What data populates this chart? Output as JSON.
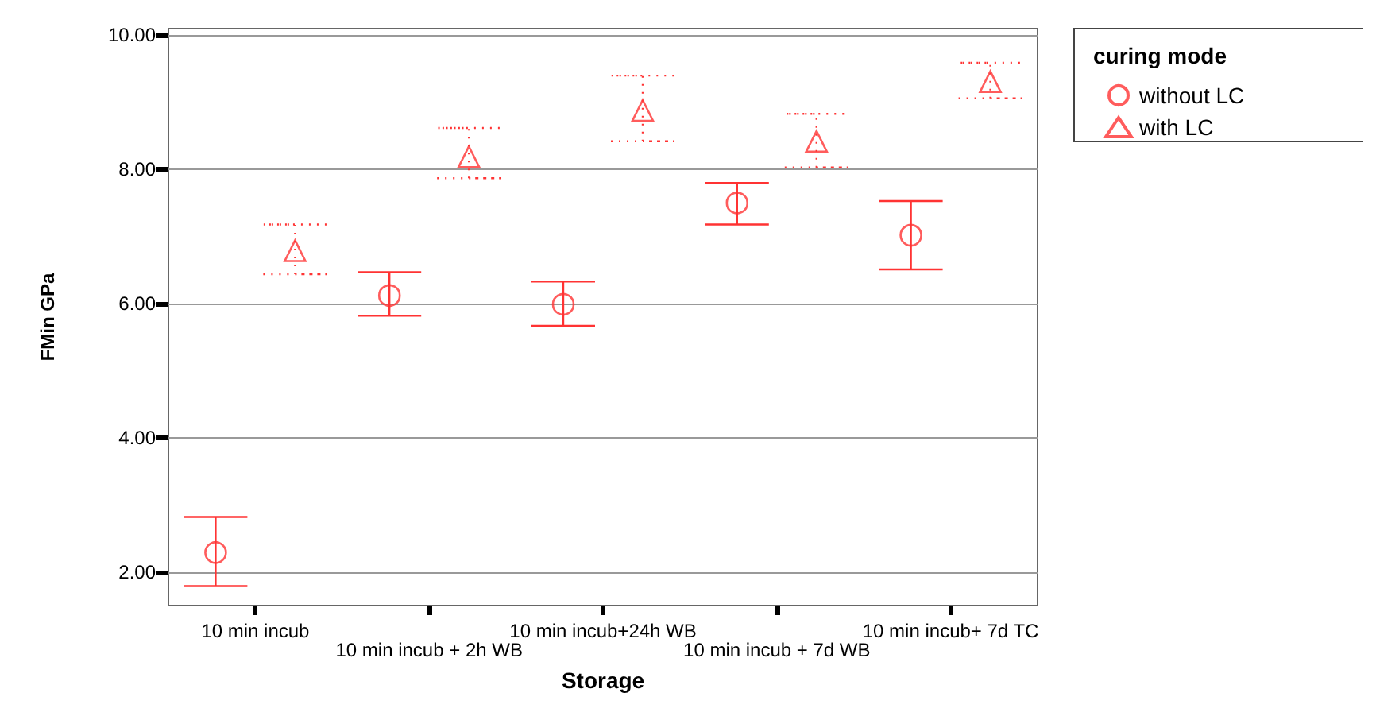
{
  "chart_data": {
    "type": "scatter",
    "xlabel": "Storage",
    "ylabel": "FMin GPa",
    "legend_title": "curing mode",
    "legend": "top right",
    "grid": "y",
    "categories": [
      "10 min incub",
      "10 min incub + 2h WB",
      "10 min incub+24h WB",
      "10 min incub + 7d WB",
      "10 min incub+ 7d TC"
    ],
    "ylim": [
      1.5,
      10.1
    ],
    "yticks": [
      {
        "value": 2,
        "label": "2.00"
      },
      {
        "value": 4,
        "label": "4.00"
      },
      {
        "value": 6,
        "label": "6.00"
      },
      {
        "value": 8,
        "label": "8.00"
      },
      {
        "value": 10,
        "label": "10.00"
      }
    ],
    "series": [
      {
        "name": "without LC",
        "color": "#ff3333",
        "marker": "circle",
        "line_style": "solid",
        "values": [
          2.29,
          6.12,
          5.99,
          7.5,
          7.02
        ],
        "errors": [
          [
            1.79,
            2.82
          ],
          [
            5.82,
            6.47
          ],
          [
            5.67,
            6.33
          ],
          [
            7.18,
            7.8
          ],
          [
            6.51,
            7.53
          ]
        ]
      },
      {
        "name": "with LC",
        "color": "#ff3333",
        "marker": "triangle",
        "line_style": "dotted",
        "values": [
          6.79,
          8.19,
          8.88,
          8.42,
          9.31
        ],
        "errors": [
          [
            6.44,
            7.18
          ],
          [
            7.87,
            8.62
          ],
          [
            8.42,
            9.4
          ],
          [
            8.03,
            8.83
          ],
          [
            9.06,
            9.59
          ]
        ]
      }
    ]
  }
}
